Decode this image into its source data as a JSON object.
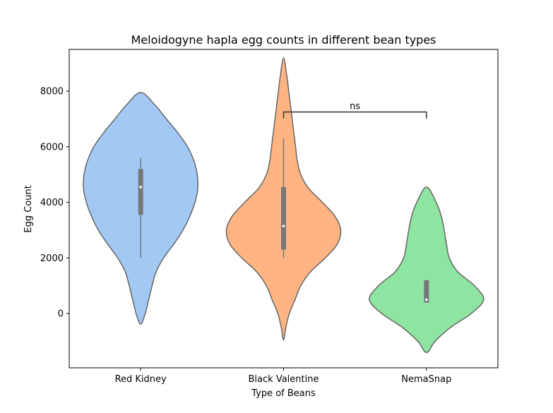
{
  "chart_data": {
    "type": "violin",
    "title": "Meloidogyne hapla egg counts in different bean types",
    "xlabel": "Type of Beans",
    "ylabel": "Egg Count",
    "ylim": [
      -1950,
      9500
    ],
    "yticks": [
      0,
      2000,
      4000,
      6000,
      8000
    ],
    "grid": false,
    "categories": [
      "Red Kidney",
      "Black Valentine",
      "NemaSnap"
    ],
    "colors": [
      "#a1c9f4",
      "#ffb482",
      "#8de5a1"
    ],
    "edge_color": "#666666",
    "violins": [
      {
        "category": "Red Kidney",
        "color": "#a1c9f4",
        "min": 2000,
        "q1": 3550,
        "median": 4550,
        "q3": 5200,
        "max": 5600,
        "kde_min": -380,
        "kde_max": 7950,
        "profile": [
          [
            -380,
            0.0
          ],
          [
            0,
            0.08
          ],
          [
            500,
            0.14
          ],
          [
            1000,
            0.2
          ],
          [
            1500,
            0.27
          ],
          [
            2000,
            0.4
          ],
          [
            2500,
            0.58
          ],
          [
            3000,
            0.74
          ],
          [
            3500,
            0.86
          ],
          [
            4000,
            0.95
          ],
          [
            4500,
            1.0
          ],
          [
            5000,
            0.99
          ],
          [
            5500,
            0.93
          ],
          [
            6000,
            0.82
          ],
          [
            6500,
            0.65
          ],
          [
            7000,
            0.45
          ],
          [
            7500,
            0.25
          ],
          [
            7950,
            0.0
          ]
        ]
      },
      {
        "category": "Black Valentine",
        "color": "#ffb482",
        "min": 2000,
        "q1": 2300,
        "median": 3150,
        "q3": 4550,
        "max": 6300,
        "kde_min": -950,
        "kde_max": 9200,
        "profile": [
          [
            -950,
            0.0
          ],
          [
            -500,
            0.04
          ],
          [
            0,
            0.1
          ],
          [
            500,
            0.2
          ],
          [
            1000,
            0.3
          ],
          [
            1500,
            0.47
          ],
          [
            2000,
            0.73
          ],
          [
            2500,
            0.94
          ],
          [
            3000,
            1.0
          ],
          [
            3500,
            0.9
          ],
          [
            4000,
            0.68
          ],
          [
            4500,
            0.44
          ],
          [
            5000,
            0.3
          ],
          [
            5500,
            0.24
          ],
          [
            6000,
            0.21
          ],
          [
            6500,
            0.18
          ],
          [
            7000,
            0.15
          ],
          [
            7500,
            0.12
          ],
          [
            8000,
            0.09
          ],
          [
            8500,
            0.06
          ],
          [
            9200,
            0.0
          ]
        ]
      },
      {
        "category": "NemaSnap",
        "color": "#8de5a1",
        "min": 400,
        "q1": 400,
        "median": 500,
        "q3": 1200,
        "max": 1200,
        "kde_min": -1400,
        "kde_max": 4550,
        "profile": [
          [
            -1400,
            0.0
          ],
          [
            -1000,
            0.15
          ],
          [
            -500,
            0.42
          ],
          [
            0,
            0.78
          ],
          [
            500,
            1.0
          ],
          [
            1000,
            0.84
          ],
          [
            1500,
            0.55
          ],
          [
            2000,
            0.4
          ],
          [
            2500,
            0.35
          ],
          [
            3000,
            0.31
          ],
          [
            3500,
            0.26
          ],
          [
            4000,
            0.17
          ],
          [
            4550,
            0.0
          ]
        ]
      }
    ],
    "annotations": [
      {
        "text": "ns",
        "from": "Black Valentine",
        "to": "NemaSnap",
        "y": 7250
      }
    ]
  }
}
